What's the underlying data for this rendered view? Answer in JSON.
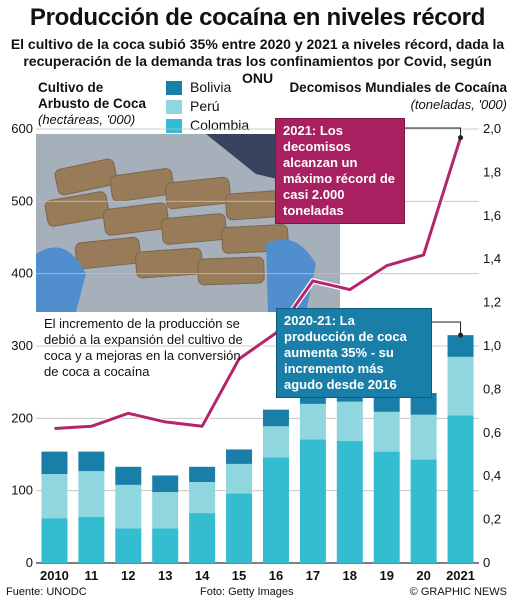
{
  "header": {
    "title": "Producción de cocaína en niveles récord",
    "subtitle": "El cultivo de la coca subió 35% entre 2020 y 2021 a niveles récord, dada la recuperación de la demanda tras los confinamientos por Covid, según ONU"
  },
  "left_axis": {
    "title_line1": "Cultivo de",
    "title_line2": "Arbusto de Coca",
    "unit": "(hectáreas, '000)"
  },
  "right_axis": {
    "title": "Decomisos Mundiales de Cocaína",
    "unit": "(toneladas, '000)"
  },
  "legend": [
    {
      "name": "Bolivia",
      "color": "#1a7fa8"
    },
    {
      "name": "Perú",
      "color": "#8fd6df"
    },
    {
      "name": "Colombia",
      "color": "#34bdd0"
    }
  ],
  "callouts": {
    "seizures": "2021: Los decomisos alcanzan un máximo récord de casi 2.000 toneladas",
    "production": "2020-21: La producción de coca aumenta 35% - su incremento más agudo desde 2016"
  },
  "note": "El incremento de la producción se debió a la expansión del cultivo de coca y a mejoras en la conversión de coca a cocaína",
  "footer": {
    "source": "Fuente: UNODC",
    "photo": "Foto: Getty Images",
    "credit": "© GRAPHIC NEWS"
  },
  "colors": {
    "seizure_line": "#b5256b",
    "callout_bg_seizure": "#a8205f",
    "callout_bg_production": "#1a7fa8"
  },
  "chart_data": {
    "type": "bar",
    "categories": [
      "2010",
      "11",
      "12",
      "13",
      "14",
      "15",
      "16",
      "17",
      "18",
      "19",
      "20",
      "2021"
    ],
    "left_ticks": [
      "0",
      "100",
      "200",
      "300",
      "400",
      "500",
      "600"
    ],
    "right_ticks": [
      "0",
      "0,2",
      "0,4",
      "0,6",
      "0,8",
      "1,0",
      "1,2",
      "1,4",
      "1,6",
      "1,8",
      "2,0"
    ],
    "ylim": [
      0,
      600
    ],
    "y2lim": [
      0,
      2.0
    ],
    "series": [
      {
        "name": "Colombia",
        "values": [
          62,
          64,
          48,
          48,
          69,
          96,
          146,
          171,
          169,
          154,
          143,
          204
        ]
      },
      {
        "name": "Perú",
        "values": [
          61,
          63,
          60,
          50,
          43,
          41,
          43,
          49,
          54,
          55,
          62,
          81
        ]
      },
      {
        "name": "Bolivia",
        "values": [
          31,
          27,
          25,
          23,
          21,
          20,
          23,
          25,
          23,
          26,
          30,
          30
        ]
      }
    ],
    "line": {
      "name": "Decomisos Mundiales de Cocaína",
      "values": [
        0.62,
        0.63,
        0.69,
        0.65,
        0.63,
        0.94,
        1.06,
        1.3,
        1.26,
        1.37,
        1.42,
        1.96
      ]
    }
  }
}
